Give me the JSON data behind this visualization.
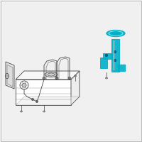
{
  "bg_color": "#f0f0f0",
  "border_color": "#bbbbbb",
  "highlight_color": "#00afc8",
  "line_color": "#444444",
  "fig_width": 2.0,
  "fig_height": 2.0,
  "dpi": 100
}
